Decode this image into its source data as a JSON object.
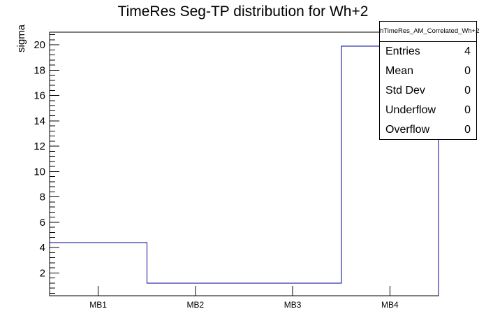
{
  "title": "TimeRes Seg-TP distribution for Wh+2",
  "y_axis_label": "sigma",
  "stats": {
    "header": "hTimeRes_AM_Correlated_Wh+2",
    "rows": [
      {
        "label": "Entries",
        "value": "4"
      },
      {
        "label": "Mean",
        "value": "0"
      },
      {
        "label": "Std Dev",
        "value": "0"
      },
      {
        "label": "Underflow",
        "value": "0"
      },
      {
        "label": "Overflow",
        "value": "0"
      }
    ]
  },
  "colors": {
    "histogram_line": "#000099",
    "axis": "#000000",
    "background": "#ffffff",
    "text": "#000000"
  },
  "chart_data": {
    "type": "bar",
    "subtype": "step-outline-histogram",
    "title": "TimeRes Seg-TP distribution for Wh+2",
    "categories": [
      "MB1",
      "MB2",
      "MB3",
      "MB4"
    ],
    "values": [
      4.4,
      1.2,
      1.2,
      19.9
    ],
    "xlabel": "",
    "ylabel": "sigma",
    "ylim": [
      0.2,
      21.0
    ],
    "y_major_ticks": [
      2,
      4,
      6,
      8,
      10,
      12,
      14,
      16,
      18,
      20
    ],
    "y_minor_tick_step": 0.4,
    "grid": false,
    "legend": false,
    "line_color": "#000099"
  }
}
